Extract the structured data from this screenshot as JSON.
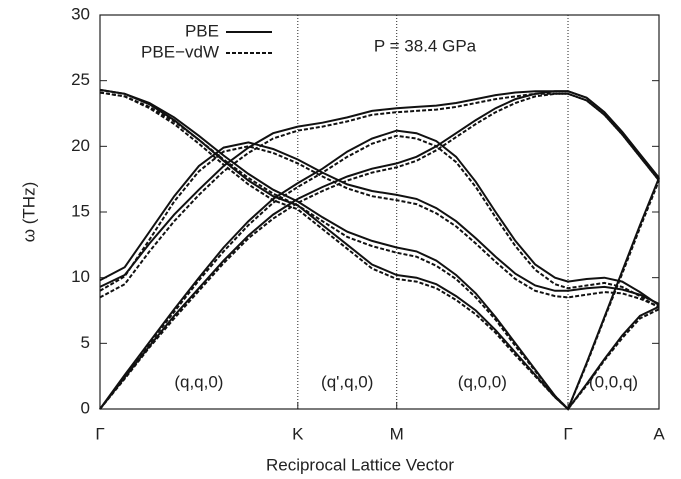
{
  "chart_data": {
    "type": "line",
    "annotation": "P = 38.4 GPa",
    "region_labels": [
      "(q,q,0)",
      "(q',q,0)",
      "(q,0,0)",
      "(0,0,q)"
    ],
    "x_label": "Reciprocal Lattice Vector",
    "y_label": "ω (THz)",
    "xlim": [
      0,
      2.826
    ],
    "xticks": [
      {
        "value": 0,
        "label": "Γ"
      },
      {
        "value": 1,
        "label": "K"
      },
      {
        "value": 1.5,
        "label": "M"
      },
      {
        "value": 2.366,
        "label": "Γ"
      },
      {
        "value": 2.826,
        "label": "A"
      }
    ],
    "ylim": [
      0,
      30
    ],
    "yticks": [
      0,
      5,
      10,
      15,
      20,
      25,
      30
    ],
    "x": [
      0,
      0.125,
      0.25,
      0.375,
      0.5,
      0.625,
      0.75,
      0.875,
      1,
      1.125,
      1.25,
      1.375,
      1.5,
      1.6,
      1.7,
      1.8,
      1.9,
      2.0,
      2.1,
      2.2,
      2.3,
      2.366,
      2.46,
      2.55,
      2.64,
      2.73,
      2.826
    ],
    "series": [
      {
        "name": "PBE",
        "color": "#111111",
        "dash": "none",
        "branches": [
          {
            "values": [
              24.3,
              24.0,
              23.3,
              22.2,
              20.8,
              19.3,
              17.9,
              16.7,
              15.8,
              14.6,
              13.5,
              12.8,
              12.3,
              12.0,
              11.3,
              10.2,
              8.8,
              7.0,
              5.0,
              3.0,
              1.0,
              0,
              3.5,
              7.0,
              10.5,
              14.0,
              17.6
            ]
          },
          {
            "values": [
              24.3,
              24.0,
              23.2,
              22.0,
              20.5,
              18.9,
              17.4,
              16.2,
              15.5,
              14.0,
              12.5,
              11.0,
              10.2,
              10.0,
              9.5,
              8.6,
              7.5,
              6.0,
              4.3,
              2.6,
              0.9,
              0,
              1.9,
              3.8,
              5.6,
              7.1,
              7.8
            ]
          },
          {
            "values": [
              9.8,
              10.8,
              13.5,
              16.2,
              18.5,
              19.9,
              20.3,
              19.8,
              19.0,
              18.0,
              17.1,
              16.6,
              16.3,
              16.0,
              15.3,
              14.3,
              13.0,
              11.6,
              10.3,
              9.4,
              9.0,
              9.0,
              9.2,
              9.3,
              9.1,
              8.7,
              8.0
            ]
          },
          {
            "values": [
              9.3,
              10.2,
              12.6,
              14.8,
              16.7,
              18.5,
              19.9,
              21.0,
              21.5,
              21.8,
              22.2,
              22.7,
              22.9,
              23.0,
              23.1,
              23.3,
              23.6,
              23.9,
              24.1,
              24.2,
              24.2,
              24.2,
              23.7,
              22.6,
              21.1,
              19.4,
              17.6
            ]
          },
          {
            "values": [
              0,
              2.6,
              5.1,
              7.6,
              10.0,
              12.3,
              14.3,
              16.0,
              17.2,
              18.3,
              19.6,
              20.6,
              21.2,
              21.0,
              20.4,
              19.2,
              17.3,
              15.0,
              12.8,
              11.0,
              10.0,
              9.7,
              9.9,
              10.0,
              9.7,
              8.9,
              7.9
            ]
          },
          {
            "values": [
              0,
              2.4,
              4.8,
              7.1,
              9.2,
              11.3,
              13.2,
              14.8,
              16.0,
              16.9,
              17.7,
              18.3,
              18.7,
              19.2,
              20.0,
              21.0,
              22.0,
              22.9,
              23.6,
              24.0,
              24.2,
              24.2,
              23.7,
              22.6,
              21.1,
              19.4,
              17.6
            ]
          }
        ]
      },
      {
        "name": "PBE−vdW",
        "color": "#111111",
        "dash": "4,2",
        "branches": [
          {
            "values": [
              24.1,
              23.8,
              23.0,
              21.9,
              20.5,
              19.0,
              17.6,
              16.4,
              15.5,
              14.3,
              13.1,
              12.4,
              11.9,
              11.6,
              10.9,
              9.9,
              8.5,
              6.8,
              4.8,
              2.9,
              1.0,
              0,
              3.4,
              6.9,
              10.3,
              13.8,
              17.4
            ]
          },
          {
            "values": [
              24.1,
              23.8,
              22.9,
              21.7,
              20.2,
              18.6,
              17.1,
              15.9,
              15.2,
              13.7,
              12.2,
              10.7,
              9.9,
              9.7,
              9.2,
              8.3,
              7.2,
              5.8,
              4.1,
              2.5,
              0.9,
              0,
              1.8,
              3.7,
              5.4,
              6.9,
              7.6
            ]
          },
          {
            "values": [
              9.0,
              10.1,
              12.9,
              15.8,
              18.1,
              19.6,
              20.0,
              19.5,
              18.7,
              17.7,
              16.8,
              16.2,
              15.9,
              15.6,
              14.9,
              13.9,
              12.6,
              11.2,
              9.9,
              9.0,
              8.6,
              8.5,
              8.7,
              8.9,
              8.8,
              8.4,
              7.8
            ]
          },
          {
            "values": [
              8.5,
              9.5,
              12.0,
              14.3,
              16.3,
              18.1,
              19.5,
              20.6,
              21.2,
              21.5,
              21.9,
              22.4,
              22.6,
              22.7,
              22.8,
              23.0,
              23.3,
              23.6,
              23.8,
              24.0,
              24.0,
              24.0,
              23.5,
              22.4,
              20.9,
              19.2,
              17.4
            ]
          },
          {
            "values": [
              0,
              2.5,
              5.0,
              7.4,
              9.8,
              12.0,
              14.0,
              15.7,
              16.9,
              18.0,
              19.2,
              20.2,
              20.8,
              20.6,
              20.0,
              18.8,
              16.9,
              14.6,
              12.4,
              10.6,
              9.5,
              9.2,
              9.4,
              9.6,
              9.3,
              8.6,
              7.7
            ]
          },
          {
            "values": [
              0,
              2.3,
              4.7,
              6.9,
              9.0,
              11.1,
              13.0,
              14.5,
              15.7,
              16.6,
              17.4,
              18.0,
              18.4,
              18.9,
              19.7,
              20.7,
              21.7,
              22.6,
              23.3,
              23.8,
              24.0,
              24.0,
              23.5,
              22.4,
              20.9,
              19.2,
              17.4
            ]
          }
        ]
      }
    ]
  }
}
